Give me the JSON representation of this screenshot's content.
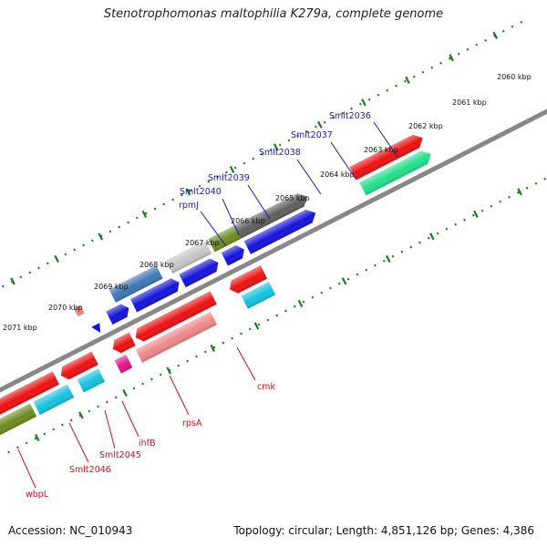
{
  "title": "Stenotrophomonas maltophilia K279a, complete genome",
  "footer": {
    "accession": "Accession: NC_010943",
    "topology": "Topology: circular; Length: 4,851,126 bp; Genes: 4,386"
  },
  "tick_labels": [
    "2060 kbp",
    "2061 kbp",
    "2062 kbp",
    "2063 kbp",
    "2064 kbp",
    "2065 kbp",
    "2066 kbp",
    "2067 kbp",
    "2068 kbp",
    "2069 kbp",
    "2070 kbp",
    "2071 kbp"
  ],
  "labels_top": [
    "Smlt2036",
    "Smlt2037",
    "Smlt2038",
    "Smlt2039",
    "Smlt2040",
    "rpmJ"
  ],
  "labels_bottom": [
    "cmk",
    "rpsA",
    "ihfB",
    "Smlt2045",
    "Smlt2046",
    "wbpL"
  ],
  "colors": {
    "forward_label": "#1a1aa8",
    "reverse_label": "#cc1111",
    "backbone": "#8a8a8a",
    "tick": "#1f7a1f",
    "red": "#ee1111",
    "pink": "#ee8888",
    "magenta": "#e0148c",
    "cyan": "#16c2e0",
    "olive": "#6e8c1e",
    "mint": "#22e08c",
    "blue": "#1414dc",
    "steel": "#3d78b4",
    "lightgray": "#c6c6c6",
    "darkgray": "#5f5f5f"
  }
}
